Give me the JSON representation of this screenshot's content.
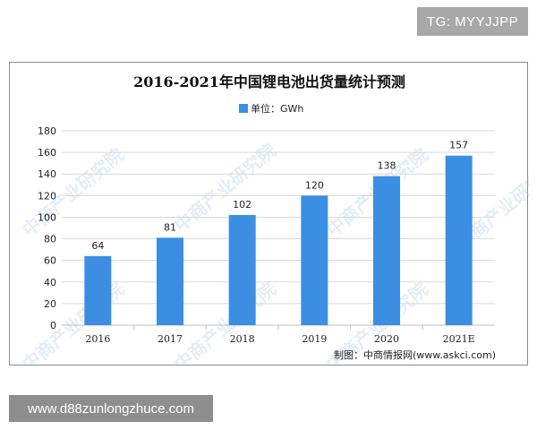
{
  "badge": {
    "text": "TG: MYYJJPP"
  },
  "banner": {
    "text": "www.d88zunlongzhuce.com"
  },
  "source": {
    "text": "制图：中商情报网(www.askci.com)"
  },
  "watermark": {
    "text": "中商产业研究院"
  },
  "colors": {
    "bar": "#3c8ee3",
    "grid": "#d9d9d9",
    "axis": "#bfbfbf"
  },
  "chart_data": {
    "type": "bar",
    "title": "2016-2021年中国锂电池出货量统计预测",
    "categories": [
      "2016",
      "2017",
      "2018",
      "2019",
      "2020",
      "2021E"
    ],
    "series": [
      {
        "name": "单位：GWh",
        "values": [
          64,
          81,
          102,
          120,
          138,
          157
        ]
      }
    ],
    "data_labels": [
      "64",
      "81",
      "102",
      "120",
      "138",
      "157"
    ],
    "y_ticks": [
      0,
      20,
      40,
      60,
      80,
      100,
      120,
      140,
      160,
      180
    ],
    "ylim": [
      0,
      180
    ],
    "grid": true,
    "legend_position": "top-center"
  }
}
